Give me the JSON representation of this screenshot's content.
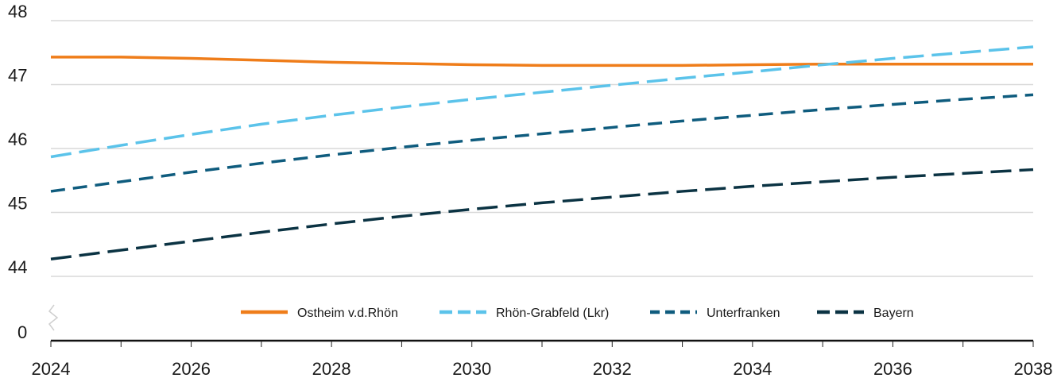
{
  "chart_data": {
    "type": "line",
    "title": "",
    "xlabel": "",
    "ylabel": "",
    "xlim": [
      2024,
      2038
    ],
    "ylim": [
      44,
      48
    ],
    "y_axis_break": true,
    "y_axis_origin_label": "0",
    "grid": "horizontal",
    "legend_position": "bottom-right",
    "x_ticks": [
      "2024",
      "2026",
      "2028",
      "2030",
      "2032",
      "2034",
      "2036",
      "2038"
    ],
    "y_ticks": [
      "44",
      "45",
      "46",
      "47",
      "48"
    ],
    "x": [
      2024,
      2025,
      2026,
      2027,
      2028,
      2029,
      2030,
      2031,
      2032,
      2033,
      2034,
      2035,
      2036,
      2037,
      2038
    ],
    "series": [
      {
        "name": "Ostheim v.d.Rhön",
        "color": "#ef7d1a",
        "style": "solid",
        "values": [
          47.43,
          47.43,
          47.41,
          47.38,
          47.35,
          47.33,
          47.31,
          47.3,
          47.3,
          47.3,
          47.31,
          47.32,
          47.32,
          47.32,
          47.32
        ]
      },
      {
        "name": "Rhön-Grabfeld (Lkr)",
        "color": "#5bc3ea",
        "style": "long-dash",
        "values": [
          45.87,
          46.05,
          46.22,
          46.38,
          46.52,
          46.65,
          46.77,
          46.88,
          46.99,
          47.1,
          47.2,
          47.31,
          47.41,
          47.5,
          47.59
        ]
      },
      {
        "name": "Unterfranken",
        "color": "#0f5c7e",
        "style": "dash",
        "values": [
          45.33,
          45.48,
          45.63,
          45.77,
          45.9,
          46.02,
          46.13,
          46.23,
          46.33,
          46.43,
          46.52,
          46.61,
          46.69,
          46.77,
          46.84
        ]
      },
      {
        "name": "Bayern",
        "color": "#0b3343",
        "style": "long-dash",
        "values": [
          44.27,
          44.41,
          44.55,
          44.69,
          44.82,
          44.94,
          45.05,
          45.15,
          45.24,
          45.33,
          45.41,
          45.48,
          45.55,
          45.61,
          45.67
        ]
      }
    ]
  }
}
